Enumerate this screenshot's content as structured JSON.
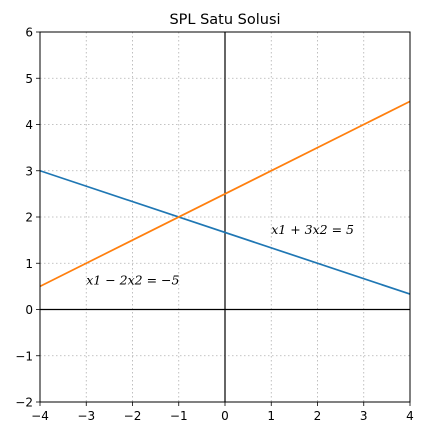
{
  "chart_data": {
    "type": "line",
    "title": "SPL Satu Solusi",
    "xlabel": "",
    "ylabel": "",
    "xlim": [
      -4,
      4
    ],
    "ylim": [
      -2,
      6
    ],
    "x_ticks": [
      -4,
      -3,
      -2,
      -1,
      0,
      1,
      2,
      3,
      4
    ],
    "y_ticks": [
      -2,
      -1,
      0,
      1,
      2,
      3,
      4,
      5,
      6
    ],
    "x_tick_labels": [
      "−4",
      "−3",
      "−2",
      "−1",
      "0",
      "1",
      "2",
      "3",
      "4"
    ],
    "y_tick_labels": [
      "−2",
      "−1",
      "0",
      "1",
      "2",
      "3",
      "4",
      "5",
      "6"
    ],
    "grid": true,
    "series": [
      {
        "name": "x1 + 3x2 = 5",
        "color": "#1f77b4",
        "x": [
          -4,
          4
        ],
        "y": [
          3.0,
          0.3333
        ]
      },
      {
        "name": "x1 − 2x2 = −5",
        "color": "#ff7f0e",
        "x": [
          -4,
          4
        ],
        "y": [
          0.5,
          4.5
        ]
      }
    ],
    "annotations": [
      {
        "text": "x1 + 3x2 = 5",
        "x": 1.0,
        "y": 1.55
      },
      {
        "text": "x1 − 2x2 = −5",
        "x": -3.0,
        "y": 0.45
      }
    ]
  }
}
